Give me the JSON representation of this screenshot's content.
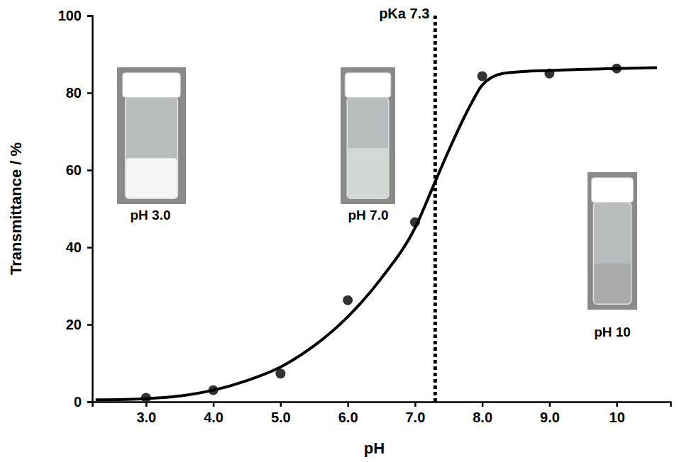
{
  "chart_data": {
    "type": "scatter",
    "x_label": "pH",
    "y_label": "Transmittance / %",
    "xlim": [
      2.2,
      10.8
    ],
    "ylim": [
      0,
      100
    ],
    "xticks": [
      {
        "value": 3,
        "label": "3.0"
      },
      {
        "value": 4,
        "label": "4.0"
      },
      {
        "value": 5,
        "label": "5.0"
      },
      {
        "value": 6,
        "label": "6.0"
      },
      {
        "value": 7,
        "label": "7.0"
      },
      {
        "value": 8,
        "label": "8.0"
      },
      {
        "value": 9,
        "label": "9.0"
      },
      10
    ],
    "yticks": [
      0,
      20,
      40,
      60,
      80,
      100
    ],
    "grid": false,
    "series": [
      {
        "type": "scatter",
        "marker": "circle",
        "color": "#333333",
        "x": [
          3,
          4,
          5,
          6,
          7,
          8,
          9,
          10
        ],
        "values": [
          1,
          3,
          7.3,
          26.3,
          46.5,
          84.3,
          85,
          86.3
        ]
      },
      {
        "type": "line",
        "line_style": "solid",
        "color": "#000000",
        "x": [
          2.25,
          3,
          3.5,
          4,
          4.5,
          5,
          5.5,
          6,
          6.5,
          7,
          7.3,
          7.5,
          7.8,
          8,
          8.3,
          8.6,
          9,
          10,
          10.6
        ],
        "values": [
          0.5,
          0.8,
          1.5,
          3,
          5.5,
          9,
          14.5,
          22,
          32,
          45,
          57,
          65,
          76,
          82,
          85,
          85.5,
          85.8,
          86.3,
          86.5
        ]
      }
    ],
    "annotations": [
      {
        "text": "pKa 7.3",
        "x": 7.3,
        "line_style": "dotted"
      }
    ],
    "images": [
      {
        "label": "pH 3.0"
      },
      {
        "label": "pH 7.0"
      },
      {
        "label": "pH 10"
      }
    ]
  }
}
